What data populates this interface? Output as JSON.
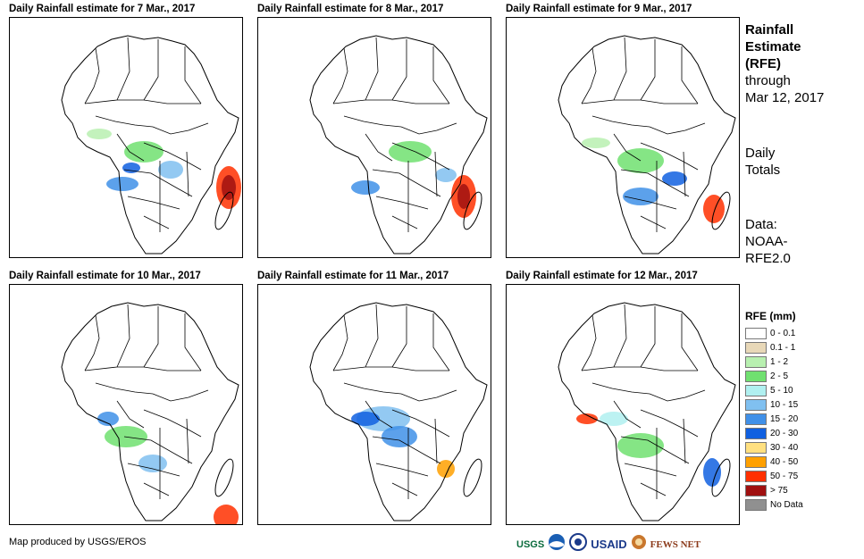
{
  "panels": [
    {
      "title": "Daily Rainfall estimate for 7 Mar., 2017"
    },
    {
      "title": "Daily Rainfall estimate for 8 Mar., 2017"
    },
    {
      "title": "Daily Rainfall estimate for 9 Mar., 2017"
    },
    {
      "title": "Daily Rainfall estimate for 10 Mar., 2017"
    },
    {
      "title": "Daily Rainfall estimate for 11 Mar., 2017"
    },
    {
      "title": "Daily Rainfall estimate for 12 Mar., 2017"
    }
  ],
  "sidebar": {
    "heading_1": "Rainfall",
    "heading_2": "Estimate",
    "heading_3": "(RFE)",
    "through": "through",
    "date": "Mar 12, 2017",
    "daily_1": "Daily",
    "daily_2": "Totals",
    "data_1": "Data:",
    "data_2": "NOAA-",
    "data_3": "RFE2.0"
  },
  "legend": {
    "title": "RFE (mm)",
    "items": [
      {
        "label": "0 - 0.1",
        "color": "#ffffff"
      },
      {
        "label": "0.1 - 1",
        "color": "#e8d8b8"
      },
      {
        "label": "1 - 2",
        "color": "#b8f0b0"
      },
      {
        "label": "2 - 5",
        "color": "#70e070"
      },
      {
        "label": "5 - 10",
        "color": "#b0f0f0"
      },
      {
        "label": "10 - 15",
        "color": "#80c0f0"
      },
      {
        "label": "15 - 20",
        "color": "#4090e8"
      },
      {
        "label": "20 - 30",
        "color": "#1060e0"
      },
      {
        "label": "30 - 40",
        "color": "#ffe080"
      },
      {
        "label": "40 - 50",
        "color": "#ffa000"
      },
      {
        "label": "50 - 75",
        "color": "#ff3000"
      },
      {
        "label": "> 75",
        "color": "#a01010"
      },
      {
        "label": "No Data",
        "color": "#909090"
      }
    ]
  },
  "footer": {
    "credit": "Map produced by USGS/EROS",
    "logos": [
      "USGS",
      "NOAA",
      "USAID",
      "FEWS NET"
    ]
  }
}
